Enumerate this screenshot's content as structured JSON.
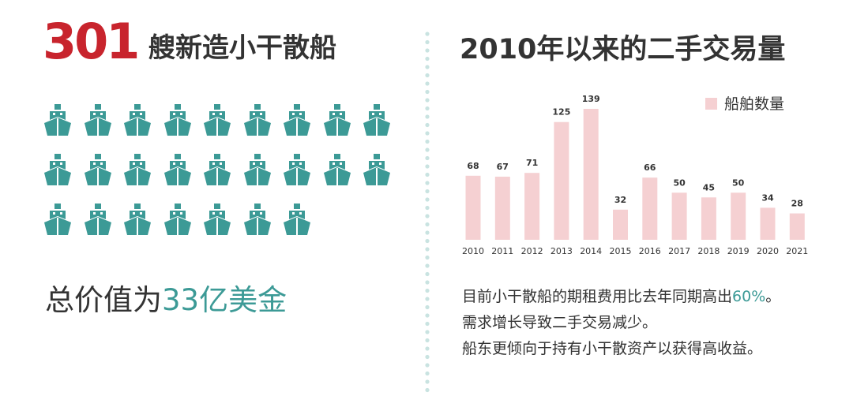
{
  "left": {
    "count": "301",
    "count_label": "艘新造小干散船",
    "ship_icon_count": 25,
    "ship_icon": "ship-icon",
    "total_prefix": "总价值为",
    "total_value": "33亿美金"
  },
  "right": {
    "title": "2010年以来的二手交易量",
    "desc_line1_pre": "目前小干散船的期租费用比去年同期高出",
    "desc_line1_hl": "60%",
    "desc_line1_post": "。",
    "desc_line2": "需求增长导致二手交易减少。",
    "desc_line3": "船东更倾向于持有小干散资产以获得高收益。"
  },
  "colors": {
    "accent_red": "#c8242d",
    "accent_teal": "#3c9a96",
    "bar": "#f5d0d2",
    "text": "#333333",
    "divider": "#c9e3e1"
  },
  "chart_data": {
    "type": "bar",
    "title": "2010年以来的二手交易量",
    "categories": [
      "2010",
      "2011",
      "2012",
      "2013",
      "2014",
      "2015",
      "2016",
      "2017",
      "2018",
      "2019",
      "2020",
      "2021"
    ],
    "series": [
      {
        "name": "船舶数量",
        "values": [
          68,
          67,
          71,
          125,
          139,
          32,
          66,
          50,
          45,
          50,
          34,
          28
        ]
      }
    ],
    "data_labels": true,
    "legend": "top-right",
    "grid": false,
    "ylim": [
      0,
      139
    ]
  }
}
